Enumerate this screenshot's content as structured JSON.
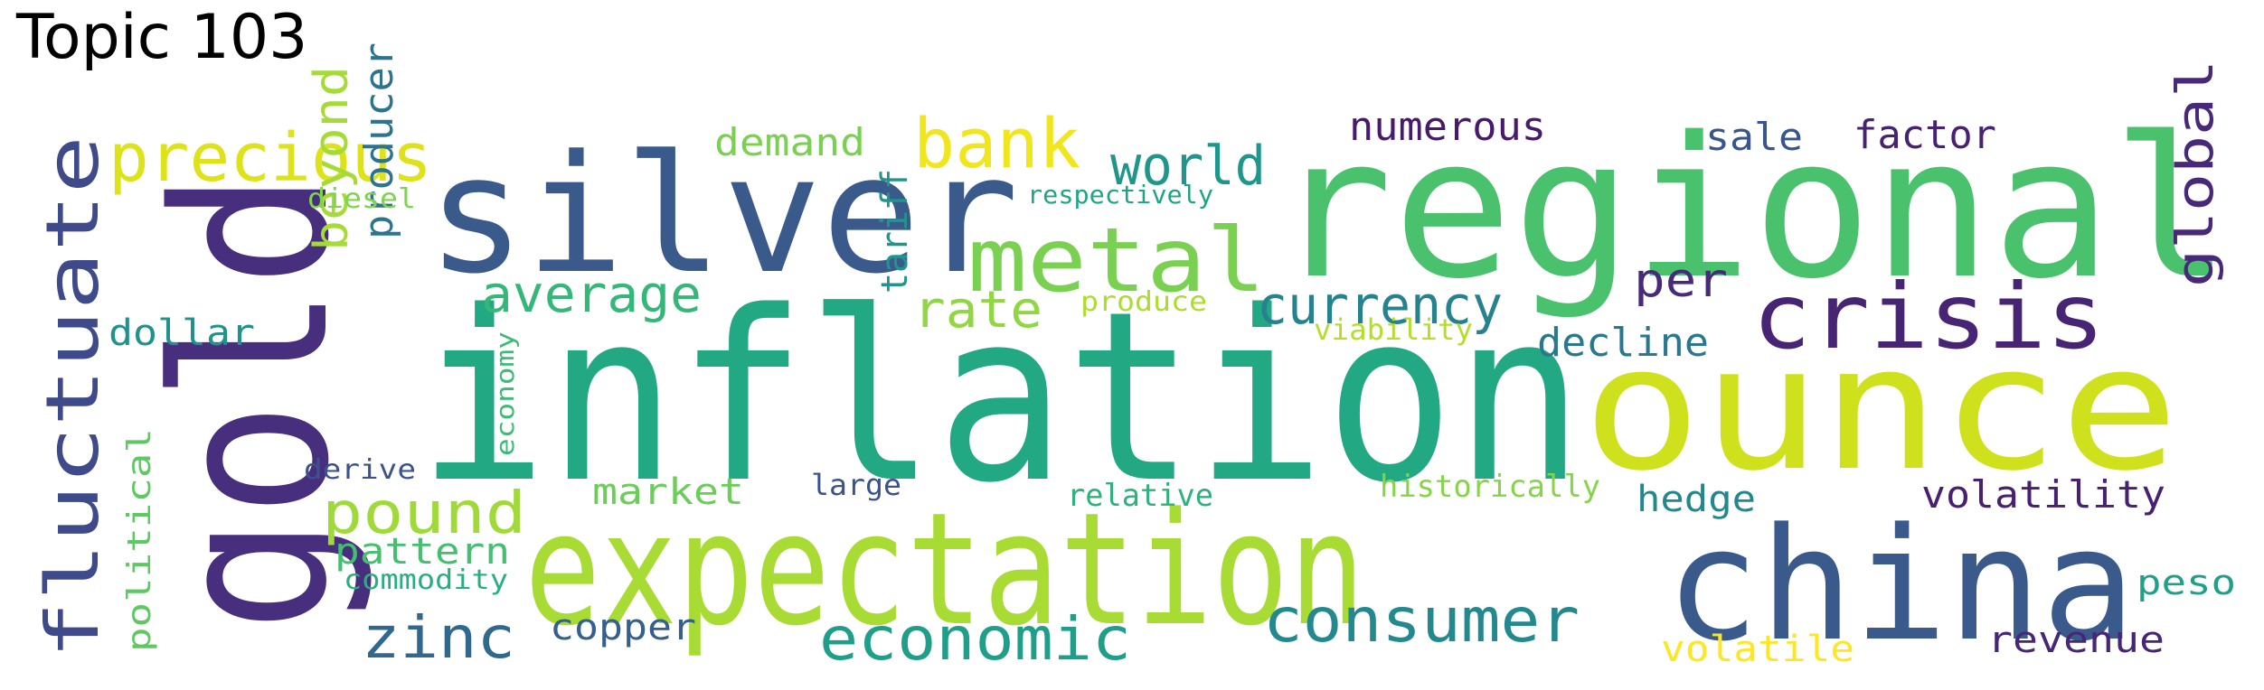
{
  "title": "Topic 103",
  "palette": "viridis",
  "words": [
    {
      "text": "inflation",
      "color": "#23a884"
    },
    {
      "text": "regional",
      "color": "#4ac16d"
    },
    {
      "text": "silver",
      "color": "#3b5a8c"
    },
    {
      "text": "gold",
      "color": "#472f7d"
    },
    {
      "text": "ounce",
      "color": "#cfe11c"
    },
    {
      "text": "expectation",
      "color": "#a8db34"
    },
    {
      "text": "china",
      "color": "#3b5a8c"
    },
    {
      "text": "fluctuate",
      "color": "#3e4a89"
    },
    {
      "text": "crisis",
      "color": "#482475"
    },
    {
      "text": "metal",
      "color": "#7ad151"
    },
    {
      "text": "precious",
      "color": "#dde318"
    },
    {
      "text": "consumer",
      "color": "#23898e"
    },
    {
      "text": "economic",
      "color": "#1f9e89"
    },
    {
      "text": "bank",
      "color": "#f1e51d"
    },
    {
      "text": "pound",
      "color": "#a0da39"
    },
    {
      "text": "zinc",
      "color": "#31688e"
    },
    {
      "text": "world",
      "color": "#1f968b"
    },
    {
      "text": "currency",
      "color": "#26828e"
    },
    {
      "text": "average",
      "color": "#35b779"
    },
    {
      "text": "global",
      "color": "#482878"
    },
    {
      "text": "rate",
      "color": "#90d743"
    },
    {
      "text": "per",
      "color": "#472a7a"
    },
    {
      "text": "beyond",
      "color": "#a5db36"
    },
    {
      "text": "producer",
      "color": "#2c738e"
    },
    {
      "text": "decline",
      "color": "#2a788e"
    },
    {
      "text": "numerous",
      "color": "#481a6c"
    },
    {
      "text": "factor",
      "color": "#482173"
    },
    {
      "text": "sale",
      "color": "#39568c"
    },
    {
      "text": "demand",
      "color": "#7ad151"
    },
    {
      "text": "volatility",
      "color": "#482071"
    },
    {
      "text": "tariff",
      "color": "#1f968b"
    },
    {
      "text": "market",
      "color": "#6ccd5a"
    },
    {
      "text": "hedge",
      "color": "#23888e"
    },
    {
      "text": "dollar",
      "color": "#21918c"
    },
    {
      "text": "pattern",
      "color": "#44bf70"
    },
    {
      "text": "copper",
      "color": "#355f8d"
    },
    {
      "text": "volatile",
      "color": "#fde725"
    },
    {
      "text": "revenue",
      "color": "#482677"
    },
    {
      "text": "peso",
      "color": "#1fa088"
    },
    {
      "text": "political",
      "color": "#5ec962"
    },
    {
      "text": "historically",
      "color": "#86d549"
    },
    {
      "text": "relative",
      "color": "#2db27d"
    },
    {
      "text": "large",
      "color": "#3b528b"
    },
    {
      "text": "viability",
      "color": "#b5de2b"
    },
    {
      "text": "produce",
      "color": "#addc30"
    },
    {
      "text": "diesel",
      "color": "#7fd34e"
    },
    {
      "text": "respectively",
      "color": "#20a486"
    },
    {
      "text": "derive",
      "color": "#3b528b"
    },
    {
      "text": "economy",
      "color": "#3bbb75"
    },
    {
      "text": "commodity",
      "color": "#29af7f"
    }
  ]
}
